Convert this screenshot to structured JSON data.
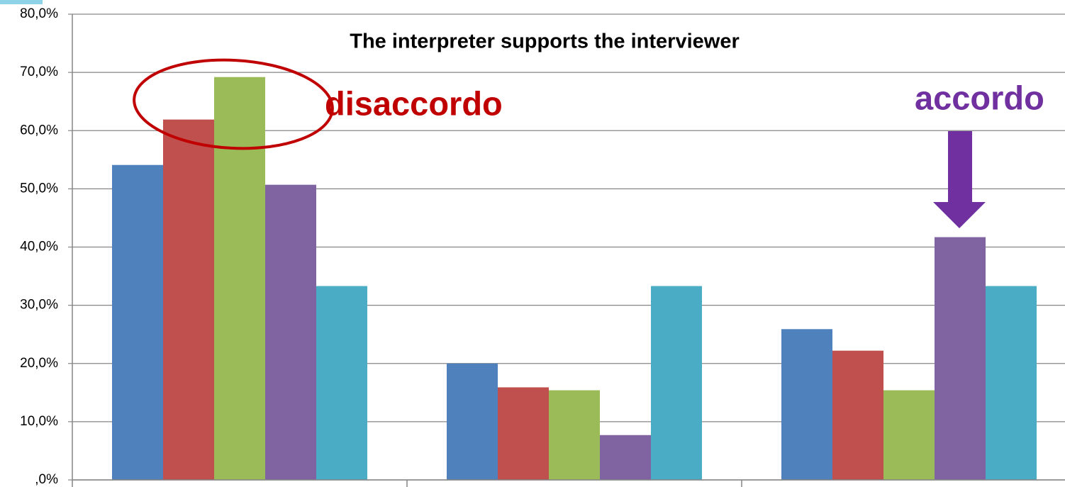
{
  "chart_data": {
    "type": "bar",
    "title": "The interpreter supports the interviewer",
    "annotations": [
      "disaccordo",
      "accordo"
    ],
    "categories": [
      null,
      null,
      null
    ],
    "series": [
      {
        "color": "#4f81bd",
        "values": [
          54.1,
          20.0,
          25.9
        ]
      },
      {
        "color": "#c0504d",
        "values": [
          61.9,
          15.9,
          22.2
        ]
      },
      {
        "color": "#9bbb59",
        "values": [
          69.2,
          15.4,
          15.4
        ]
      },
      {
        "color": "#8064a2",
        "values": [
          50.7,
          7.7,
          41.7
        ]
      },
      {
        "color": "#4bacc6",
        "values": [
          33.3,
          33.3,
          33.3
        ]
      }
    ],
    "ylim": [
      0,
      80
    ],
    "yticks": [
      {
        "value": 0,
        "label": ",0%"
      },
      {
        "value": 10,
        "label": "10,0%"
      },
      {
        "value": 20,
        "label": "20,0%"
      },
      {
        "value": 30,
        "label": "30,0%"
      },
      {
        "value": 40,
        "label": "40,0%"
      },
      {
        "value": 50,
        "label": "50,0%"
      },
      {
        "value": 60,
        "label": "60,0%"
      },
      {
        "value": 70,
        "label": "70,0%"
      },
      {
        "value": 80,
        "label": "80,0%"
      }
    ],
    "grid": true
  }
}
